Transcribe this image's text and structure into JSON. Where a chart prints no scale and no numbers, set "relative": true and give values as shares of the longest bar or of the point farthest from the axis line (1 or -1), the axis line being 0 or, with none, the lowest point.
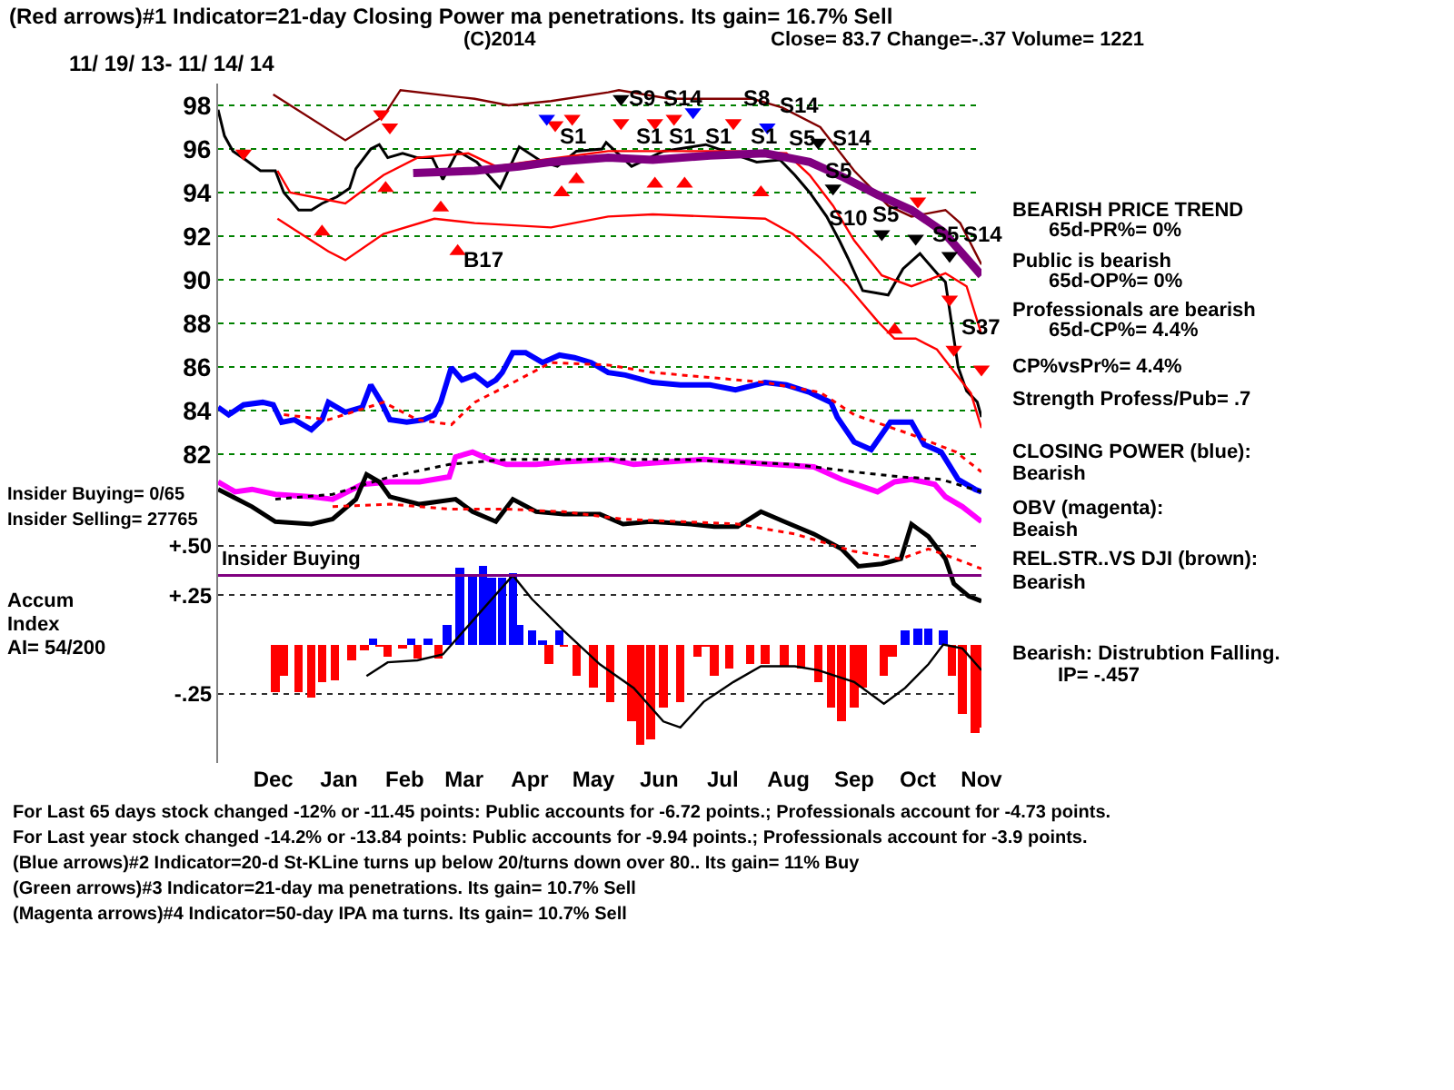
{
  "chart_data": [
    {
      "type": "line",
      "title": "(Red arrows)#1 Indicator=21-day Closing Power ma penetrations. Its gain= 16.7% Sell",
      "subtitle": "11/ 19/ 13- 11/ 14/ 14",
      "xlim": [
        "2013-11-19",
        "2014-11-14"
      ],
      "ylim": [
        81,
        99
      ],
      "yticks": [
        82,
        84,
        86,
        88,
        90,
        92,
        94,
        96,
        98
      ],
      "grid": "y",
      "tick_labels": "y",
      "legend": false,
      "series": [
        {
          "color": "#000000",
          "x": [
            "2013-11-19",
            "2013-11-22",
            "2013-11-26",
            "2013-12-02",
            "2013-12-09",
            "2013-12-16",
            "2013-12-20",
            "2013-12-27",
            "2014-01-02",
            "2014-01-07",
            "2014-01-14",
            "2014-01-20",
            "2014-01-23",
            "2014-01-30",
            "2014-02-03",
            "2014-02-07",
            "2014-02-14",
            "2014-02-21",
            "2014-02-28",
            "2014-03-05",
            "2014-03-12",
            "2014-03-21",
            "2014-04-01",
            "2014-04-10",
            "2014-04-21",
            "2014-04-28",
            "2014-05-07",
            "2014-05-19",
            "2014-05-21",
            "2014-06-02",
            "2014-06-17",
            "2014-07-07",
            "2014-07-31",
            "2014-08-11",
            "2014-08-18",
            "2014-08-25",
            "2014-09-02",
            "2014-09-08",
            "2014-09-12",
            "2014-09-19",
            "2014-10-01",
            "2014-10-08",
            "2014-10-16",
            "2014-10-24",
            "2014-10-28",
            "2014-11-03",
            "2014-11-07",
            "2014-11-12",
            "2014-11-14"
          ],
          "values": [
            97.8,
            96.6,
            95.9,
            95.5,
            95.0,
            95.0,
            94.0,
            93.2,
            93.2,
            93.5,
            93.8,
            94.2,
            95.1,
            96.0,
            96.2,
            95.6,
            95.8,
            95.6,
            95.6,
            94.6,
            95.9,
            95.4,
            94.2,
            96.1,
            95.4,
            95.2,
            95.9,
            96.0,
            96.3,
            95.2,
            95.9,
            96.2,
            95.4,
            95.5,
            94.8,
            94.0,
            92.9,
            91.8,
            91.0,
            89.5,
            89.3,
            90.5,
            91.2,
            90.3,
            89.9,
            86.0,
            84.9,
            84.4,
            83.7
          ]
        },
        {
          "color": "#800000",
          "x": [
            "2013-12-15",
            "2014-01-18",
            "2014-02-05",
            "2014-02-13",
            "2014-03-20",
            "2014-04-05",
            "2014-04-25",
            "2014-05-22",
            "2014-05-27",
            "2014-06-20",
            "2014-07-29",
            "2014-08-12",
            "2014-08-30",
            "2014-09-15",
            "2014-10-01",
            "2014-10-12",
            "2014-10-28",
            "2014-11-04",
            "2014-11-14"
          ],
          "values": [
            98.5,
            96.4,
            97.5,
            98.7,
            98.3,
            98.0,
            98.2,
            98.6,
            98.7,
            98.3,
            98.3,
            97.9,
            97.0,
            95.0,
            93.4,
            92.9,
            93.2,
            92.6,
            90.7
          ]
        },
        {
          "color": "#ff0000",
          "x": [
            "2013-12-17",
            "2013-12-23",
            "2014-01-18",
            "2014-02-05",
            "2014-02-21",
            "2014-03-17",
            "2014-03-30",
            "2014-04-21",
            "2014-05-22",
            "2014-06-12",
            "2014-07-21",
            "2014-08-14",
            "2014-08-25",
            "2014-09-05",
            "2014-09-15",
            "2014-09-28",
            "2014-10-12",
            "2014-10-28",
            "2014-11-07",
            "2014-11-14"
          ],
          "values": [
            95.0,
            94.0,
            93.5,
            94.8,
            95.6,
            95.8,
            95.2,
            95.5,
            95.9,
            95.9,
            95.9,
            95.8,
            94.8,
            93.4,
            91.8,
            90.2,
            89.7,
            90.3,
            89.7,
            87.5
          ]
        },
        {
          "color": "#ff0000",
          "x": [
            "2013-12-17",
            "2014-01-10",
            "2014-01-18",
            "2014-02-05",
            "2014-03-01",
            "2014-03-20",
            "2014-04-25",
            "2014-05-22",
            "2014-06-12",
            "2014-07-09",
            "2014-08-04",
            "2014-08-17",
            "2014-08-30",
            "2014-09-12",
            "2014-09-26",
            "2014-10-04",
            "2014-10-14",
            "2014-10-24",
            "2014-11-01",
            "2014-11-09",
            "2014-11-14"
          ],
          "values": [
            92.8,
            91.3,
            90.9,
            92.1,
            92.8,
            92.6,
            92.4,
            92.9,
            93.0,
            92.9,
            92.8,
            92.1,
            91.0,
            89.7,
            88.1,
            87.3,
            87.3,
            86.8,
            85.8,
            84.8,
            83.2
          ]
        },
        {
          "color": "#800080",
          "x": [
            "2014-02-19",
            "2014-03-20",
            "2014-04-10",
            "2014-04-25",
            "2014-05-22",
            "2014-06-12",
            "2014-07-09",
            "2014-08-04",
            "2014-08-25",
            "2014-09-10",
            "2014-09-26",
            "2014-10-12",
            "2014-10-27",
            "2014-11-14"
          ],
          "values": [
            94.9,
            95.0,
            95.2,
            95.4,
            95.6,
            95.5,
            95.7,
            95.8,
            95.4,
            94.7,
            93.9,
            93.2,
            92.2,
            90.2
          ]
        },
        {
          "type": "scatter",
          "marker": "triangle",
          "color": "#ff0000",
          "x": [
            "2014-01-07",
            "2014-02-06",
            "2014-03-04",
            "2014-03-12",
            "2014-04-30",
            "2014-05-07",
            "2014-06-13",
            "2014-06-27",
            "2014-08-02",
            "2014-10-04"
          ],
          "values": [
            92.2,
            94.2,
            93.3,
            91.3,
            94.0,
            94.6,
            94.4,
            94.4,
            94.0,
            87.7
          ]
        },
        {
          "type": "scatter",
          "marker": "triangle",
          "color": "#ff0000",
          "x": [
            "2013-12-01",
            "2014-02-04",
            "2014-02-08",
            "2014-04-27",
            "2014-05-05",
            "2014-05-28",
            "2014-06-13",
            "2014-06-22",
            "2014-07-20",
            "2014-10-15",
            "2014-10-30",
            "2014-11-01",
            "2014-11-14"
          ],
          "values": [
            95.8,
            97.6,
            97.0,
            97.1,
            97.4,
            97.2,
            97.2,
            97.4,
            97.2,
            93.6,
            89.1,
            86.8,
            85.9
          ]
        },
        {
          "type": "scatter",
          "marker": "triangle",
          "color": "#0000ff",
          "x": [
            "2014-04-23",
            "2014-07-01",
            "2014-08-05"
          ],
          "values": [
            97.4,
            97.7,
            97.0
          ]
        },
        {
          "type": "scatter",
          "marker": "triangle",
          "color": "#000000",
          "x": [
            "2014-05-28",
            "2014-08-29",
            "2014-09-05",
            "2014-09-28",
            "2014-10-14",
            "2014-10-30"
          ],
          "values": [
            98.3,
            96.3,
            94.2,
            92.1,
            91.9,
            91.1
          ]
        }
      ],
      "annotations": [
        "(C)2014",
        "Close= 83.7 Change=-.37 Volume= 1221",
        "BEARISH PRICE TREND",
        "65d-PR%= 0%",
        "Public is bearish",
        "65d-OP%= 0%",
        "Professionals are bearish",
        "65d-CP%= 4.4%",
        "CP%vsPr%= 4.4%",
        "Strength Profess/Pub= .7",
        "S14",
        "S5",
        "S14",
        "S14",
        "B17",
        "S1",
        "S1",
        "S1",
        "S1",
        "S1",
        {
          "text": "S9",
          "x": "2014-06-07",
          "y": 98.3
        },
        {
          "text": "S14",
          "x": "2014-06-26",
          "y": 98.3
        },
        {
          "text": "S8",
          "x": "2014-07-31",
          "y": 98.3
        },
        {
          "text": "S5",
          "x": "2014-09-08",
          "y": 95.0
        },
        {
          "text": "S10",
          "x": "2014-09-12",
          "y": 92.8
        },
        {
          "text": "S5",
          "x": "2014-09-30",
          "y": 93.0
        },
        {
          "text": "S5",
          "x": "2014-10-28",
          "y": 92.1
        },
        {
          "text": "S37",
          "x": "2014-11-14",
          "y": 87.8
        }
      ]
    },
    {
      "type": "line",
      "relative": true,
      "xlim": [
        "2013-11-19",
        "2014-11-14"
      ],
      "tick_labels": false,
      "legend": false,
      "series": [
        {
          "color": "#0000ff",
          "x": [
            "2013-11-19",
            "2013-11-24",
            "2013-12-01",
            "2013-12-10",
            "2013-12-15",
            "2013-12-19",
            "2013-12-25",
            "2014-01-02",
            "2014-01-07",
            "2014-01-10",
            "2014-01-18",
            "2014-01-26",
            "2014-01-30",
            "2014-02-04",
            "2014-02-08",
            "2014-02-16",
            "2014-02-24",
            "2014-03-01",
            "2014-03-04",
            "2014-03-09",
            "2014-03-14",
            "2014-03-20",
            "2014-03-26",
            "2014-03-30",
            "2014-04-02",
            "2014-04-07",
            "2014-04-13",
            "2014-04-21",
            "2014-04-29",
            "2014-05-06",
            "2014-05-14",
            "2014-05-22",
            "2014-05-30",
            "2014-06-12",
            "2014-06-25",
            "2014-07-09",
            "2014-07-21",
            "2014-08-04",
            "2014-08-14",
            "2014-08-25",
            "2014-09-04",
            "2014-09-07",
            "2014-09-15",
            "2014-09-23",
            "2014-10-02",
            "2014-10-12",
            "2014-10-18",
            "2014-10-26",
            "2014-11-03",
            "2014-11-11",
            "2014-11-14"
          ],
          "values": [
            0.78,
            0.75,
            0.79,
            0.8,
            0.79,
            0.72,
            0.73,
            0.69,
            0.73,
            0.8,
            0.76,
            0.78,
            0.87,
            0.8,
            0.73,
            0.72,
            0.73,
            0.75,
            0.8,
            0.94,
            0.89,
            0.91,
            0.87,
            0.89,
            0.92,
            1.0,
            1.0,
            0.96,
            0.99,
            0.98,
            0.96,
            0.92,
            0.91,
            0.88,
            0.87,
            0.87,
            0.85,
            0.88,
            0.87,
            0.84,
            0.8,
            0.74,
            0.64,
            0.61,
            0.72,
            0.72,
            0.63,
            0.6,
            0.49,
            0.45,
            0.44
          ]
        },
        {
          "color": "#ff0000",
          "line_style": "dotted",
          "x": [
            "2013-12-20",
            "2014-01-10",
            "2014-02-05",
            "2014-02-21",
            "2014-03-09",
            "2014-03-20",
            "2014-04-05",
            "2014-04-25",
            "2014-05-22",
            "2014-06-12",
            "2014-07-09",
            "2014-08-04",
            "2014-08-30",
            "2014-09-15",
            "2014-10-12",
            "2014-11-02",
            "2014-11-14"
          ],
          "values": [
            0.75,
            0.73,
            0.8,
            0.73,
            0.71,
            0.8,
            0.87,
            0.96,
            0.95,
            0.92,
            0.9,
            0.88,
            0.84,
            0.75,
            0.67,
            0.6,
            0.52
          ]
        },
        {
          "color": "#ff00ff",
          "x": [
            "2013-11-19",
            "2013-11-27",
            "2013-12-05",
            "2013-12-16",
            "2014-01-02",
            "2014-01-12",
            "2014-01-26",
            "2014-02-08",
            "2014-02-22",
            "2014-03-08",
            "2014-03-11",
            "2014-03-19",
            "2014-03-27",
            "2014-04-04",
            "2014-04-18",
            "2014-05-01",
            "2014-05-23",
            "2014-06-03",
            "2014-06-19",
            "2014-07-06",
            "2014-07-22",
            "2014-08-08",
            "2014-08-27",
            "2014-09-09",
            "2014-09-26",
            "2014-10-04",
            "2014-10-12",
            "2014-10-23",
            "2014-10-28",
            "2014-11-05",
            "2014-11-14"
          ],
          "values": [
            0.48,
            0.44,
            0.45,
            0.43,
            0.42,
            0.41,
            0.47,
            0.48,
            0.48,
            0.5,
            0.58,
            0.6,
            0.57,
            0.55,
            0.55,
            0.56,
            0.57,
            0.55,
            0.56,
            0.57,
            0.56,
            0.55,
            0.54,
            0.49,
            0.44,
            0.48,
            0.49,
            0.47,
            0.42,
            0.38,
            0.32
          ]
        },
        {
          "color": "#000000",
          "line_style": "dotted",
          "x": [
            "2013-12-16",
            "2014-01-12",
            "2014-02-08",
            "2014-03-08",
            "2014-04-04",
            "2014-05-01",
            "2014-05-29",
            "2014-06-25",
            "2014-07-22",
            "2014-08-18",
            "2014-09-15",
            "2014-10-07",
            "2014-10-26",
            "2014-11-14"
          ],
          "values": [
            0.41,
            0.43,
            0.5,
            0.55,
            0.57,
            0.57,
            0.57,
            0.57,
            0.56,
            0.55,
            0.52,
            0.5,
            0.49,
            0.44
          ]
        },
        {
          "color": "#000000",
          "x": [
            "2013-11-19",
            "2013-12-05",
            "2013-12-16",
            "2014-01-02",
            "2014-01-12",
            "2014-01-23",
            "2014-01-28",
            "2014-02-03",
            "2014-02-08",
            "2014-02-22",
            "2014-03-11",
            "2014-03-19",
            "2014-03-30",
            "2014-04-07",
            "2014-04-18",
            "2014-05-01",
            "2014-05-18",
            "2014-05-29",
            "2014-06-11",
            "2014-06-30",
            "2014-07-11",
            "2014-07-22",
            "2014-08-02",
            "2014-08-13",
            "2014-08-27",
            "2014-09-09",
            "2014-09-17",
            "2014-09-28",
            "2014-10-07",
            "2014-10-12",
            "2014-10-20",
            "2014-10-28",
            "2014-11-01",
            "2014-11-08",
            "2014-11-14"
          ],
          "values": [
            0.45,
            0.38,
            0.32,
            0.31,
            0.33,
            0.41,
            0.51,
            0.48,
            0.42,
            0.39,
            0.41,
            0.36,
            0.32,
            0.41,
            0.36,
            0.35,
            0.35,
            0.31,
            0.32,
            0.31,
            0.3,
            0.3,
            0.36,
            0.32,
            0.27,
            0.21,
            0.14,
            0.15,
            0.17,
            0.31,
            0.26,
            0.17,
            0.07,
            0.02,
            0
          ]
        },
        {
          "color": "#ff0000",
          "line_style": "dotted",
          "x": [
            "2014-01-12",
            "2014-02-08",
            "2014-03-08",
            "2014-04-04",
            "2014-05-01",
            "2014-05-29",
            "2014-06-25",
            "2014-07-22",
            "2014-08-18",
            "2014-09-15",
            "2014-10-07",
            "2014-10-20",
            "2014-11-02",
            "2014-11-14"
          ],
          "values": [
            0.38,
            0.39,
            0.37,
            0.37,
            0.36,
            0.33,
            0.32,
            0.31,
            0.27,
            0.2,
            0.17,
            0.21,
            0.17,
            0.13
          ]
        }
      ],
      "annotations": [
        "Insider Buying= 0/65",
        "Insider Selling= 27765",
        "CLOSING POWER (blue):",
        "Bearish",
        "OBV (magenta):",
        "Beaish",
        "REL.STR..VS DJI (brown):",
        "Bearish"
      ]
    },
    {
      "type": "bar",
      "xlim": [
        "2013-11-19",
        "2014-11-14"
      ],
      "xticks": [
        {
          "value": "2013-12-15",
          "label": "Dec"
        },
        {
          "value": "2014-01-15",
          "label": "Jan"
        },
        {
          "value": "2014-02-15",
          "label": "Feb"
        },
        {
          "value": "2014-03-15",
          "label": "Mar"
        },
        {
          "value": "2014-04-15",
          "label": "Apr"
        },
        {
          "value": "2014-05-15",
          "label": "May"
        },
        {
          "value": "2014-06-15",
          "label": "Jun"
        },
        {
          "value": "2014-07-15",
          "label": "Jul"
        },
        {
          "value": "2014-08-15",
          "label": "Aug"
        },
        {
          "value": "2014-09-15",
          "label": "Sep"
        },
        {
          "value": "2014-10-15",
          "label": "Oct"
        },
        {
          "value": "2014-11-14",
          "label": "Nov"
        }
      ],
      "ylim": [
        -0.6,
        0.55
      ],
      "yticks": [
        {
          "value": 0.5,
          "label": "+.50"
        },
        {
          "value": 0.25,
          "label": "+.25"
        },
        {
          "value": -0.25,
          "label": "-.25"
        }
      ],
      "grid": "y",
      "legend": false,
      "series": [
        {
          "x": [
            "2013-12-16",
            "2013-12-20",
            "2013-12-27",
            "2014-01-02",
            "2014-01-07",
            "2014-01-13",
            "2014-01-21",
            "2014-01-27",
            "2014-01-31",
            "2014-02-03",
            "2014-02-07",
            "2014-02-14",
            "2014-02-18",
            "2014-02-21",
            "2014-02-26",
            "2014-03-03",
            "2014-03-07",
            "2014-03-13",
            "2014-03-19",
            "2014-03-24",
            "2014-03-28",
            "2014-04-02",
            "2014-04-07",
            "2014-04-10",
            "2014-04-16",
            "2014-04-21",
            "2014-04-24",
            "2014-04-29",
            "2014-05-01",
            "2014-05-07",
            "2014-05-15",
            "2014-05-23",
            "2014-06-02",
            "2014-06-06",
            "2014-06-11",
            "2014-06-17",
            "2014-06-25",
            "2014-07-03",
            "2014-07-07",
            "2014-07-11",
            "2014-07-18",
            "2014-07-28",
            "2014-08-04",
            "2014-08-13",
            "2014-08-21",
            "2014-08-29",
            "2014-09-04",
            "2014-09-09",
            "2014-09-15",
            "2014-09-19",
            "2014-09-29",
            "2014-10-03",
            "2014-10-09",
            "2014-10-15",
            "2014-10-20",
            "2014-10-27",
            "2014-10-31",
            "2014-11-05",
            "2014-11-11",
            "2014-11-14"
          ],
          "values": [
            -0.24,
            -0.16,
            -0.24,
            -0.27,
            -0.19,
            -0.18,
            -0.08,
            -0.03,
            0.03,
            -0.01,
            -0.06,
            -0.02,
            0.03,
            -0.07,
            0.03,
            -0.07,
            0.1,
            0.39,
            0.35,
            0.4,
            0.34,
            0.34,
            0.36,
            0.1,
            0.07,
            0.02,
            -0.1,
            0.07,
            -0.01,
            -0.16,
            -0.22,
            -0.29,
            -0.39,
            -0.51,
            -0.48,
            -0.32,
            -0.29,
            -0.06,
            -0.01,
            -0.16,
            -0.12,
            -0.1,
            -0.1,
            -0.11,
            -0.12,
            -0.19,
            -0.32,
            -0.39,
            -0.32,
            -0.22,
            -0.16,
            -0.06,
            0.07,
            0.08,
            0.08,
            0.07,
            -0.16,
            -0.35,
            -0.45,
            -0.42
          ],
          "colors": [
            "#ff0000",
            "#ff0000",
            "#ff0000",
            "#ff0000",
            "#ff0000",
            "#ff0000",
            "#ff0000",
            "#ff0000",
            "#0000ff",
            "#ff0000",
            "#ff0000",
            "#ff0000",
            "#0000ff",
            "#ff0000",
            "#0000ff",
            "#ff0000",
            "#0000ff",
            "#0000ff",
            "#0000ff",
            "#0000ff",
            "#0000ff",
            "#0000ff",
            "#0000ff",
            "#0000ff",
            "#0000ff",
            "#0000ff",
            "#ff0000",
            "#0000ff",
            "#ff0000",
            "#ff0000",
            "#ff0000",
            "#ff0000",
            "#ff0000",
            "#ff0000",
            "#ff0000",
            "#ff0000",
            "#ff0000",
            "#ff0000",
            "#ff0000",
            "#ff0000",
            "#ff0000",
            "#ff0000",
            "#ff0000",
            "#ff0000",
            "#ff0000",
            "#ff0000",
            "#ff0000",
            "#ff0000",
            "#ff0000",
            "#ff0000",
            "#ff0000",
            "#ff0000",
            "#0000ff",
            "#0000ff",
            "#0000ff",
            "#0000ff",
            "#ff0000",
            "#ff0000",
            "#ff0000",
            "#ff0000"
          ]
        },
        {
          "type": "line",
          "color": "#000000",
          "x": [
            "2014-01-28",
            "2014-02-07",
            "2014-02-21",
            "2014-03-05",
            "2014-04-07",
            "2014-04-16",
            "2014-05-01",
            "2014-05-18",
            "2014-06-03",
            "2014-06-17",
            "2014-06-25",
            "2014-07-06",
            "2014-07-20",
            "2014-08-02",
            "2014-08-18",
            "2014-08-29",
            "2014-09-15",
            "2014-09-29",
            "2014-10-09",
            "2014-10-20",
            "2014-10-27",
            "2014-11-05",
            "2014-11-14"
          ],
          "values": [
            -0.16,
            -0.09,
            -0.08,
            -0.05,
            0.35,
            0.23,
            0.07,
            -0.1,
            -0.22,
            -0.39,
            -0.42,
            -0.29,
            -0.19,
            -0.11,
            -0.11,
            -0.13,
            -0.19,
            -0.3,
            -0.22,
            -0.1,
            0,
            -0.02,
            -0.13
          ]
        }
      ],
      "ref_lines": [
        {
          "axis": "y",
          "value": 0.35,
          "label": "Insider Buying",
          "color": "#800080"
        }
      ],
      "annotations": [
        "Accum",
        "Index",
        "AI= 54/200",
        "Bearish: Distrubtion Falling.",
        "IP= -.457",
        "For Last 65 days stock changed -12% or -11.45 points: Public accounts for -6.72 points.; Professionals account for -4.73 points.",
        "For Last year stock changed -14.2% or -13.84 points: Public accounts for -9.94 points.; Professionals account for -3.9 points.",
        "(Blue arrows)#2 Indicator=20-d St-KLine turns up below 20/turns down over 80.. Its gain= 11% Buy",
        "(Green arrows)#3 Indicator=21-day ma penetrations. Its gain= 10.7% Sell",
        "(Magenta arrows)#4 Indicator=50-day IPA ma turns. Its gain= 10.7% Sell"
      ]
    }
  ]
}
